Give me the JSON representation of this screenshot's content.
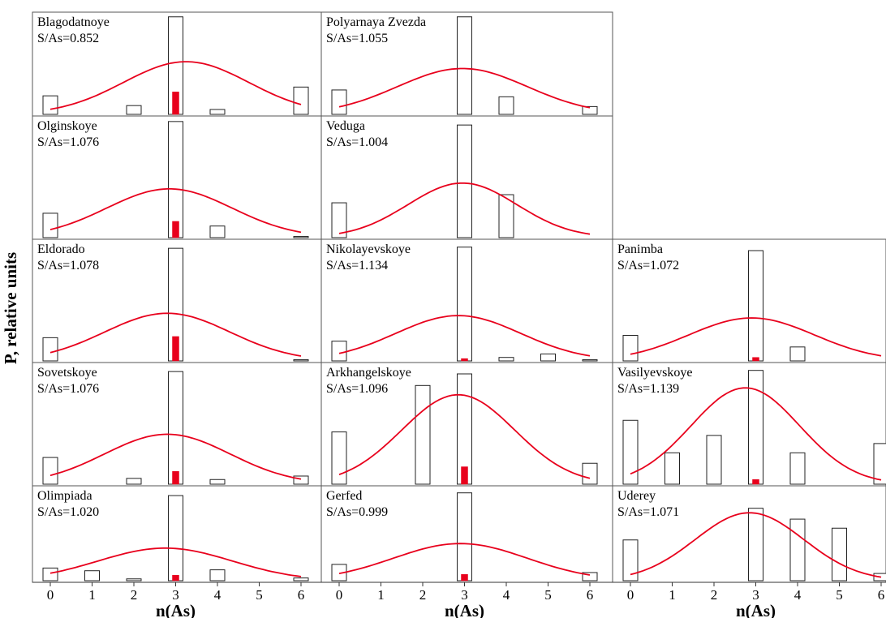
{
  "figure": {
    "ylabel": "P, relative units",
    "xlabel": "n(As)",
    "x_ticks": [
      0,
      1,
      2,
      3,
      4,
      5,
      6
    ]
  },
  "chart_data": [
    {
      "type": "bar",
      "name": "Blagodatnoye",
      "ratio": "S/As=0.852",
      "row": 0,
      "col": 0,
      "x": [
        0,
        1,
        2,
        3,
        4,
        5,
        6
      ],
      "values": [
        0.19,
        0,
        0.09,
        1.0,
        0.05,
        0,
        0.28
      ],
      "red_bar": 0.23,
      "curve": {
        "mean": 3.25,
        "sd": 1.5,
        "peak": 0.54
      }
    },
    {
      "type": "bar",
      "name": "Polyarnaya Zvezda",
      "ratio": "S/As=1.055",
      "row": 0,
      "col": 1,
      "x": [
        0,
        1,
        2,
        3,
        4,
        5,
        6
      ],
      "values": [
        0.25,
        0,
        0,
        1.0,
        0.18,
        0,
        0.08
      ],
      "red_bar": 0,
      "curve": {
        "mean": 2.95,
        "sd": 1.55,
        "peak": 0.47
      }
    },
    {
      "type": "bar",
      "name": "Olginskoye",
      "ratio": "S/As=1.076",
      "row": 1,
      "col": 0,
      "x": [
        0,
        1,
        2,
        3,
        4,
        5,
        6
      ],
      "values": [
        0.21,
        0,
        0,
        1.0,
        0.1,
        0,
        0.01
      ],
      "red_bar": 0.14,
      "curve": {
        "mean": 2.85,
        "sd": 1.5,
        "peak": 0.42
      }
    },
    {
      "type": "bar",
      "name": "Veduga",
      "ratio": "S/As=1.004",
      "row": 1,
      "col": 1,
      "x": [
        0,
        1,
        2,
        3,
        4,
        5,
        6
      ],
      "values": [
        0.3,
        0,
        0,
        0.97,
        0.37,
        0,
        0
      ],
      "red_bar": 0,
      "curve": {
        "mean": 2.95,
        "sd": 1.3,
        "peak": 0.47
      }
    },
    {
      "type": "bar",
      "name": "Eldorado",
      "ratio": "S/As=1.078",
      "row": 2,
      "col": 0,
      "x": [
        0,
        1,
        2,
        3,
        4,
        5,
        6
      ],
      "values": [
        0.2,
        0,
        0,
        0.97,
        0,
        0,
        0.01
      ],
      "red_bar": 0.21,
      "curve": {
        "mean": 2.8,
        "sd": 1.5,
        "peak": 0.41
      }
    },
    {
      "type": "bar",
      "name": "Nikolayevskoye",
      "ratio": "S/As=1.134",
      "row": 2,
      "col": 1,
      "x": [
        0,
        1,
        2,
        3,
        4,
        5,
        6
      ],
      "values": [
        0.17,
        0,
        0,
        0.98,
        0.03,
        0.06,
        0.01
      ],
      "red_bar": 0.02,
      "curve": {
        "mean": 2.85,
        "sd": 1.5,
        "peak": 0.39
      }
    },
    {
      "type": "bar",
      "name": "Panimba",
      "ratio": "S/As=1.072",
      "row": 2,
      "col": 2,
      "x": [
        0,
        1,
        2,
        3,
        4,
        5,
        6
      ],
      "values": [
        0.22,
        0,
        0,
        0.95,
        0.12,
        0,
        0
      ],
      "red_bar": 0.03,
      "curve": {
        "mean": 2.9,
        "sd": 1.5,
        "peak": 0.37
      }
    },
    {
      "type": "bar",
      "name": "Sovetskoye",
      "ratio": "S/As=1.076",
      "row": 3,
      "col": 0,
      "x": [
        0,
        1,
        2,
        3,
        4,
        5,
        6
      ],
      "values": [
        0.23,
        0,
        0.05,
        0.97,
        0.04,
        0,
        0.07
      ],
      "red_bar": 0.11,
      "curve": {
        "mean": 2.8,
        "sd": 1.5,
        "peak": 0.43
      }
    },
    {
      "type": "bar",
      "name": "Arkhangelskoye",
      "ratio": "S/As=1.096",
      "row": 3,
      "col": 1,
      "x": [
        0,
        1,
        2,
        3,
        4,
        5,
        6
      ],
      "values": [
        0.45,
        0,
        0.85,
        0.95,
        0,
        0,
        0.18
      ],
      "red_bar": 0.15,
      "curve": {
        "mean": 2.85,
        "sd": 1.35,
        "peak": 0.77
      }
    },
    {
      "type": "bar",
      "name": "Vasilyevskoye",
      "ratio": "S/As=1.139",
      "row": 3,
      "col": 2,
      "x": [
        0,
        1,
        2,
        3,
        4,
        5,
        6
      ],
      "values": [
        0.55,
        0.27,
        0.42,
        0.98,
        0.27,
        0,
        0.35
      ],
      "red_bar": 0.04,
      "curve": {
        "mean": 2.75,
        "sd": 1.3,
        "peak": 0.83
      }
    },
    {
      "type": "bar",
      "name": "Olimpiada",
      "ratio": "S/As=1.020",
      "row": 4,
      "col": 0,
      "x": [
        0,
        1,
        2,
        3,
        4,
        5,
        6
      ],
      "values": [
        0.14,
        0.11,
        0.02,
        0.94,
        0.12,
        0,
        0.03
      ],
      "red_bar": 0.06,
      "curve": {
        "mean": 2.75,
        "sd": 1.6,
        "peak": 0.36
      }
    },
    {
      "type": "bar",
      "name": "Gerfed",
      "ratio": "S/As=0.999",
      "row": 4,
      "col": 1,
      "x": [
        0,
        1,
        2,
        3,
        4,
        5,
        6
      ],
      "values": [
        0.18,
        0,
        0,
        0.97,
        0,
        0,
        0.09
      ],
      "red_bar": 0.07,
      "curve": {
        "mean": 2.9,
        "sd": 1.6,
        "peak": 0.41
      }
    },
    {
      "type": "bar",
      "name": "Uderey",
      "ratio": "S/As=1.071",
      "row": 4,
      "col": 2,
      "x": [
        0,
        1,
        2,
        3,
        4,
        5,
        6
      ],
      "values": [
        0.45,
        0,
        0,
        0.8,
        0.68,
        0.58,
        0.08
      ],
      "red_bar": 0,
      "curve": {
        "mean": 2.85,
        "sd": 1.3,
        "peak": 0.75
      }
    }
  ]
}
